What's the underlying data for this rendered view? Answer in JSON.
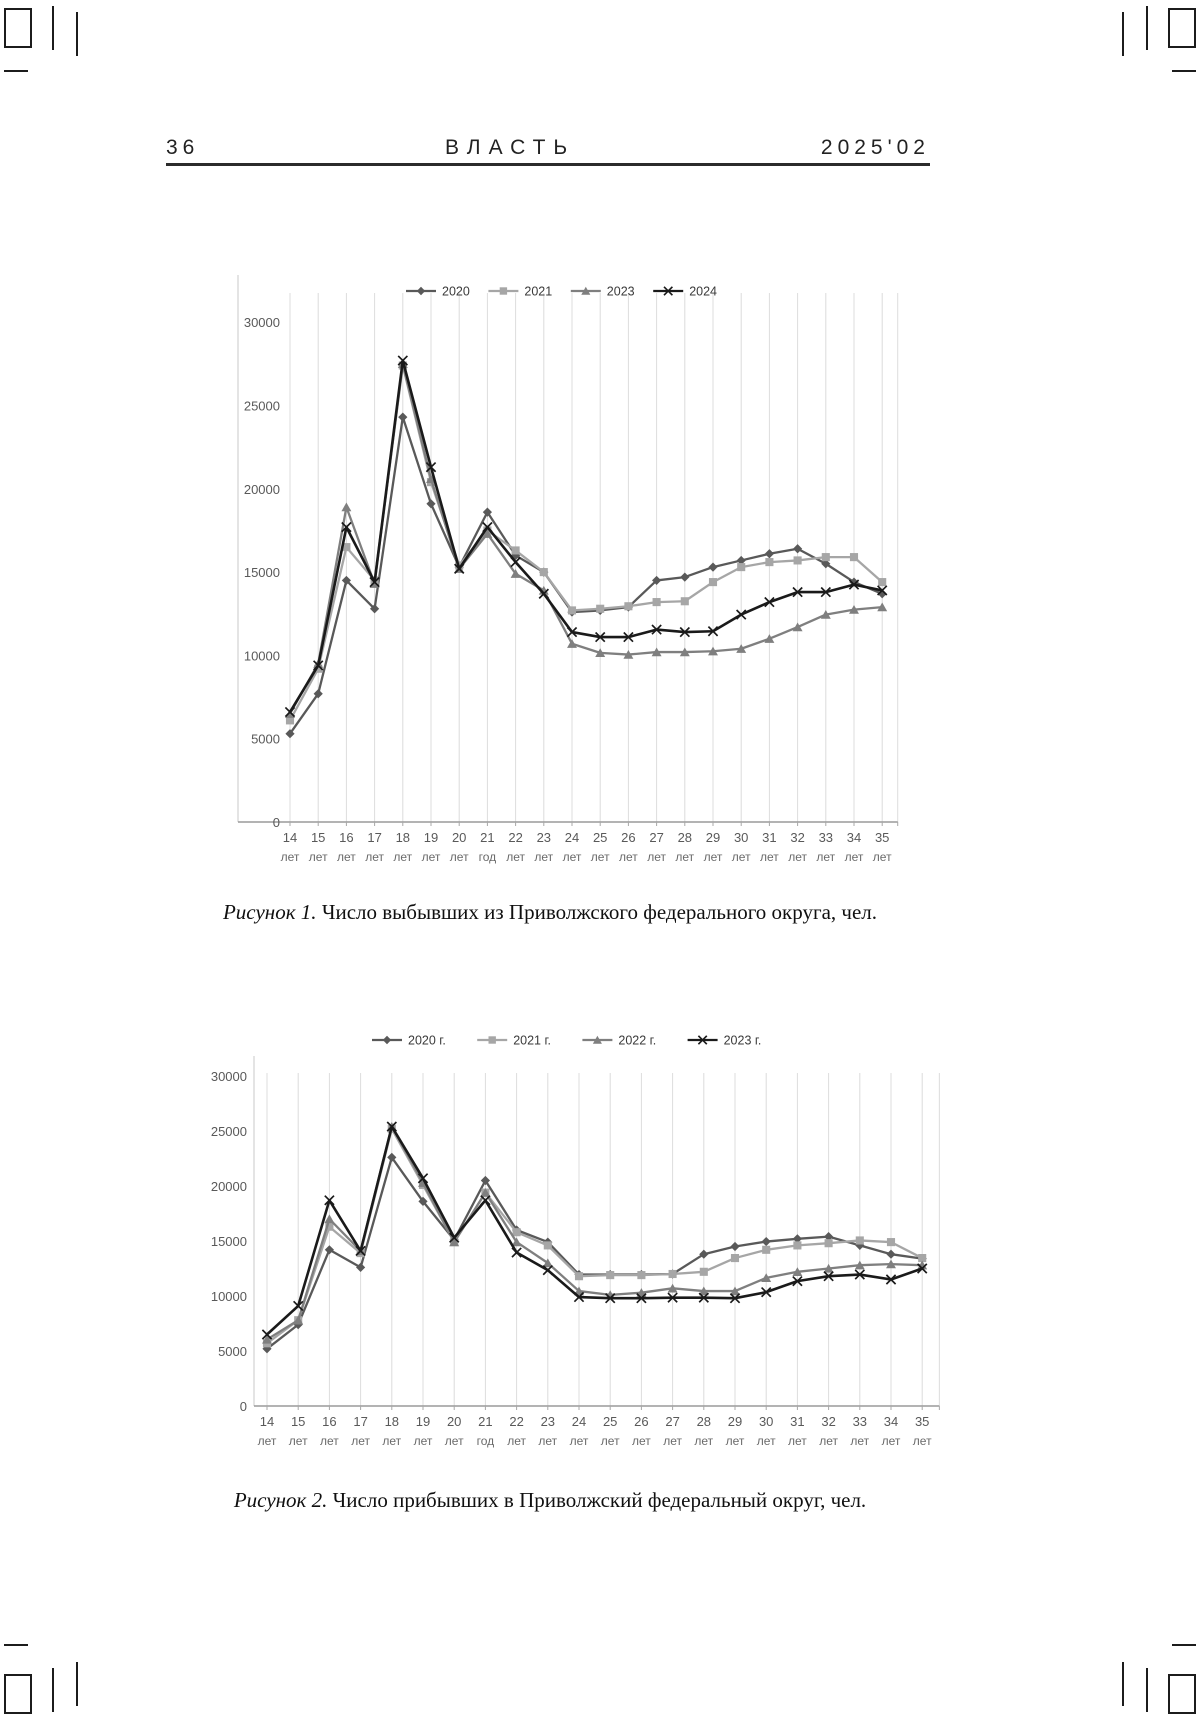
{
  "header": {
    "page_number": "36",
    "journal_title": "ВЛАСТЬ",
    "issue": "2025'02"
  },
  "figure1": {
    "caption_label": "Рисунок 1.",
    "caption_text": " Число выбывших из Приволжского федерального округа, чел."
  },
  "figure2": {
    "caption_label": "Рисунок 2.",
    "caption_text": " Число прибывших в Приволжский федеральный округ, чел."
  },
  "chart_data": [
    {
      "type": "line",
      "title": "",
      "legend_position": "top",
      "grid": "vertical-major",
      "ylim": [
        0,
        30000
      ],
      "yticks": [
        0,
        5000,
        10000,
        15000,
        20000,
        25000,
        30000
      ],
      "categories": [
        "14 лет",
        "15 лет",
        "16 лет",
        "17 лет",
        "18 лет",
        "19 лет",
        "20 лет",
        "21 год",
        "22 лет",
        "23 лет",
        "24 лет",
        "25 лет",
        "26 лет",
        "27 лет",
        "28 лет",
        "29 лет",
        "30 лет",
        "31 лет",
        "32 лет",
        "33 лет",
        "34 лет",
        "35 лет"
      ],
      "series": [
        {
          "name": "2020",
          "marker": "diamond",
          "color": "#595959",
          "values": [
            5300,
            7700,
            14500,
            12800,
            24300,
            19100,
            15300,
            18600,
            16000,
            15000,
            12600,
            12700,
            12900,
            14500,
            14700,
            15300,
            15700,
            16100,
            16400,
            15500,
            14400,
            13700
          ]
        },
        {
          "name": "2021",
          "marker": "square",
          "color": "#a6a6a6",
          "values": [
            6100,
            9200,
            16500,
            14500,
            27400,
            20400,
            15400,
            17500,
            16300,
            15000,
            12700,
            12800,
            12950,
            13200,
            13250,
            14400,
            15300,
            15600,
            15700,
            15900,
            15900,
            14400
          ]
        },
        {
          "name": "2023",
          "marker": "triangle",
          "color": "#7f7f7f",
          "values": [
            6500,
            9500,
            18900,
            14300,
            27500,
            20600,
            15200,
            17300,
            14900,
            13900,
            10700,
            10150,
            10050,
            10200,
            10200,
            10250,
            10400,
            11000,
            11700,
            12450,
            12750,
            12900
          ]
        },
        {
          "name": "2024",
          "marker": "x",
          "color": "#1a1a1a",
          "values": [
            6600,
            9400,
            17700,
            14400,
            27700,
            21300,
            15200,
            17700,
            15600,
            13700,
            11400,
            11100,
            11100,
            11550,
            11400,
            11450,
            12450,
            13200,
            13800,
            13800,
            14250,
            13900
          ]
        }
      ]
    },
    {
      "type": "line",
      "title": "",
      "legend_position": "top",
      "grid": "vertical-major",
      "ylim": [
        0,
        30000
      ],
      "yticks": [
        0,
        5000,
        10000,
        15000,
        20000,
        25000,
        30000
      ],
      "categories": [
        "14 лет",
        "15 лет",
        "16 лет",
        "17 лет",
        "18 лет",
        "19 лет",
        "20 лет",
        "21 год",
        "22 лет",
        "23 лет",
        "24 лет",
        "25 лет",
        "26 лет",
        "27 лет",
        "28 лет",
        "29 лет",
        "30 лет",
        "31 лет",
        "32 лет",
        "33 лет",
        "34 лет",
        "35 лет"
      ],
      "series": [
        {
          "name": "2020 г.",
          "marker": "diamond",
          "color": "#595959",
          "values": [
            5200,
            7400,
            14200,
            12600,
            22600,
            18600,
            15100,
            20500,
            16000,
            14900,
            11950,
            11950,
            11950,
            12000,
            13800,
            14500,
            14950,
            15200,
            15400,
            14600,
            13800,
            13400
          ]
        },
        {
          "name": "2021 г.",
          "marker": "square",
          "color": "#a6a6a6",
          "values": [
            5700,
            7800,
            16300,
            13900,
            25200,
            20100,
            14900,
            19400,
            15800,
            14600,
            11800,
            11900,
            11900,
            12000,
            12200,
            13450,
            14200,
            14600,
            14800,
            15050,
            14900,
            13450
          ]
        },
        {
          "name": "2022 г.",
          "marker": "triangle",
          "color": "#7f7f7f",
          "values": [
            6050,
            7800,
            17000,
            14100,
            25400,
            20300,
            14900,
            19400,
            14900,
            13000,
            10450,
            10100,
            10300,
            10700,
            10450,
            10450,
            11650,
            12200,
            12500,
            12800,
            12900,
            12800
          ]
        },
        {
          "name": "2023 г.",
          "marker": "x",
          "color": "#1a1a1a",
          "values": [
            6500,
            9100,
            18700,
            14100,
            25400,
            20700,
            15300,
            18700,
            13950,
            12350,
            9900,
            9800,
            9800,
            9850,
            9850,
            9800,
            10350,
            11350,
            11800,
            11950,
            11500,
            12500
          ]
        }
      ]
    }
  ]
}
